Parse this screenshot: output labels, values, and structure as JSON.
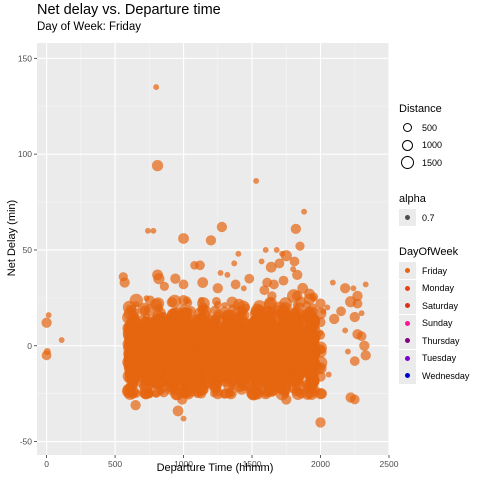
{
  "chart_data": {
    "type": "scatter",
    "title": "Net delay vs. Departure time",
    "subtitle": "Day of Week: Friday",
    "xlabel": "Departure Time (hhmm)",
    "ylabel": "Net Delay (min)",
    "xlim": [
      -70,
      2500
    ],
    "ylim": [
      -57,
      158
    ],
    "x_ticks": [
      0,
      500,
      1000,
      1500,
      2000,
      2500
    ],
    "y_ticks": [
      -50,
      0,
      50,
      100,
      150
    ],
    "grid": true,
    "legend_position": "right",
    "point_color": "#E6650F",
    "point_alpha": 0.7,
    "legends": {
      "distance": {
        "title": "Distance",
        "entries": [
          {
            "label": "500",
            "value": 500
          },
          {
            "label": "1000",
            "value": 1000
          },
          {
            "label": "1500",
            "value": 1500
          }
        ]
      },
      "alpha": {
        "title": "alpha",
        "entries": [
          {
            "label": "0.7",
            "value": 0.7
          }
        ]
      },
      "day_of_week": {
        "title": "DayOfWeek",
        "entries": [
          {
            "label": "Friday",
            "color": "#E6650F"
          },
          {
            "label": "Monday",
            "color": "#E8431C"
          },
          {
            "label": "Saturday",
            "color": "#D9341A"
          },
          {
            "label": "Sunday",
            "color": "#FF1493"
          },
          {
            "label": "Thursday",
            "color": "#800080"
          },
          {
            "label": "Tuesday",
            "color": "#7B00D4"
          },
          {
            "label": "Wednesday",
            "color": "#0000CD"
          }
        ]
      }
    },
    "series": [
      {
        "points": [
          {
            "x": 0,
            "y": 12,
            "d": 700
          },
          {
            "x": 0,
            "y": -5,
            "d": 600
          },
          {
            "x": 5,
            "y": -3,
            "d": 200
          },
          {
            "x": 15,
            "y": 16,
            "d": 100
          },
          {
            "x": 110,
            "y": 3,
            "d": 100
          },
          {
            "x": 800,
            "y": 135,
            "d": 100
          },
          {
            "x": 810,
            "y": 94,
            "d": 900
          },
          {
            "x": 1530,
            "y": 86,
            "d": 100
          },
          {
            "x": 1880,
            "y": 70,
            "d": 100
          },
          {
            "x": 1820,
            "y": 61,
            "d": 700
          },
          {
            "x": 1280,
            "y": 62,
            "d": 700
          },
          {
            "x": 1000,
            "y": 56,
            "d": 800
          },
          {
            "x": 1200,
            "y": 55,
            "d": 700
          },
          {
            "x": 1850,
            "y": 52,
            "d": 500
          },
          {
            "x": 1750,
            "y": 47,
            "d": 900
          },
          {
            "x": 740,
            "y": 60,
            "d": 100
          },
          {
            "x": 780,
            "y": 60,
            "d": 100
          },
          {
            "x": 1600,
            "y": 50,
            "d": 100
          },
          {
            "x": 1680,
            "y": 50,
            "d": 100
          },
          {
            "x": 1720,
            "y": 48,
            "d": 100
          },
          {
            "x": 1570,
            "y": 44,
            "d": 100
          },
          {
            "x": 1400,
            "y": 48,
            "d": 100
          },
          {
            "x": 1080,
            "y": 42,
            "d": 400
          },
          {
            "x": 1120,
            "y": 42,
            "d": 600
          },
          {
            "x": 1370,
            "y": 43,
            "d": 100
          },
          {
            "x": 1700,
            "y": 43,
            "d": 600
          },
          {
            "x": 1640,
            "y": 41,
            "d": 800
          },
          {
            "x": 1810,
            "y": 44,
            "d": 600
          },
          {
            "x": 1480,
            "y": 35,
            "d": 600
          },
          {
            "x": 1800,
            "y": 40,
            "d": 100
          },
          {
            "x": 1830,
            "y": 37,
            "d": 700
          },
          {
            "x": 1270,
            "y": 38,
            "d": 100
          },
          {
            "x": 1320,
            "y": 37,
            "d": 100
          },
          {
            "x": 560,
            "y": 36,
            "d": 500
          },
          {
            "x": 570,
            "y": 33,
            "d": 700
          },
          {
            "x": 810,
            "y": 37,
            "d": 800
          },
          {
            "x": 820,
            "y": 35,
            "d": 900
          },
          {
            "x": 860,
            "y": 31,
            "d": 500
          },
          {
            "x": 940,
            "y": 35,
            "d": 700
          },
          {
            "x": 1000,
            "y": 32,
            "d": 600
          },
          {
            "x": 1140,
            "y": 33,
            "d": 800
          },
          {
            "x": 1250,
            "y": 30,
            "d": 700
          },
          {
            "x": 1380,
            "y": 32,
            "d": 600
          },
          {
            "x": 1440,
            "y": 30,
            "d": 100
          },
          {
            "x": 1590,
            "y": 29,
            "d": 600
          },
          {
            "x": 1610,
            "y": 33,
            "d": 600
          },
          {
            "x": 1660,
            "y": 32,
            "d": 600
          },
          {
            "x": 1730,
            "y": 34,
            "d": 600
          },
          {
            "x": 1870,
            "y": 30,
            "d": 800
          },
          {
            "x": 1920,
            "y": 27,
            "d": 800
          },
          {
            "x": 2090,
            "y": 33,
            "d": 100
          },
          {
            "x": 2180,
            "y": 30,
            "d": 700
          },
          {
            "x": 2240,
            "y": 30,
            "d": 100
          },
          {
            "x": 2270,
            "y": 26,
            "d": 700
          },
          {
            "x": 2330,
            "y": 32,
            "d": 100
          },
          {
            "x": 2220,
            "y": 23,
            "d": 900
          },
          {
            "x": 2270,
            "y": 22,
            "d": 600
          },
          {
            "x": 2000,
            "y": 22,
            "d": 700
          },
          {
            "x": 2020,
            "y": 18,
            "d": 100
          },
          {
            "x": 2050,
            "y": 20,
            "d": 100
          },
          {
            "x": 2100,
            "y": 14,
            "d": 700
          },
          {
            "x": 2150,
            "y": 18,
            "d": 600
          },
          {
            "x": 2250,
            "y": 15,
            "d": 700
          },
          {
            "x": 2300,
            "y": 17,
            "d": 100
          },
          {
            "x": 2180,
            "y": 8,
            "d": 100
          },
          {
            "x": 2270,
            "y": 6,
            "d": 700
          },
          {
            "x": 2300,
            "y": 5,
            "d": 600
          },
          {
            "x": 2330,
            "y": -5,
            "d": 700
          },
          {
            "x": 2200,
            "y": -3,
            "d": 100
          },
          {
            "x": 2250,
            "y": -8,
            "d": 600
          },
          {
            "x": 2320,
            "y": 0,
            "d": 700
          },
          {
            "x": 2220,
            "y": -27,
            "d": 700
          },
          {
            "x": 2250,
            "y": -28,
            "d": 600
          },
          {
            "x": 2010,
            "y": -25,
            "d": 700
          },
          {
            "x": 2000,
            "y": -40,
            "d": 700
          },
          {
            "x": 960,
            "y": -34,
            "d": 800
          },
          {
            "x": 990,
            "y": -28,
            "d": 700
          },
          {
            "x": 650,
            "y": -31,
            "d": 700
          },
          {
            "x": 1860,
            "y": -25,
            "d": 600
          },
          {
            "x": 1750,
            "y": -28,
            "d": 700
          },
          {
            "x": 1100,
            "y": -24,
            "d": 600
          },
          {
            "x": 1000,
            "y": -38,
            "d": 100
          },
          {
            "x": 1150,
            "y": -23,
            "d": 500
          },
          {
            "x": 1920,
            "y": -21,
            "d": 100
          },
          {
            "x": 2060,
            "y": -15,
            "d": 100
          }
        ]
      }
    ]
  }
}
